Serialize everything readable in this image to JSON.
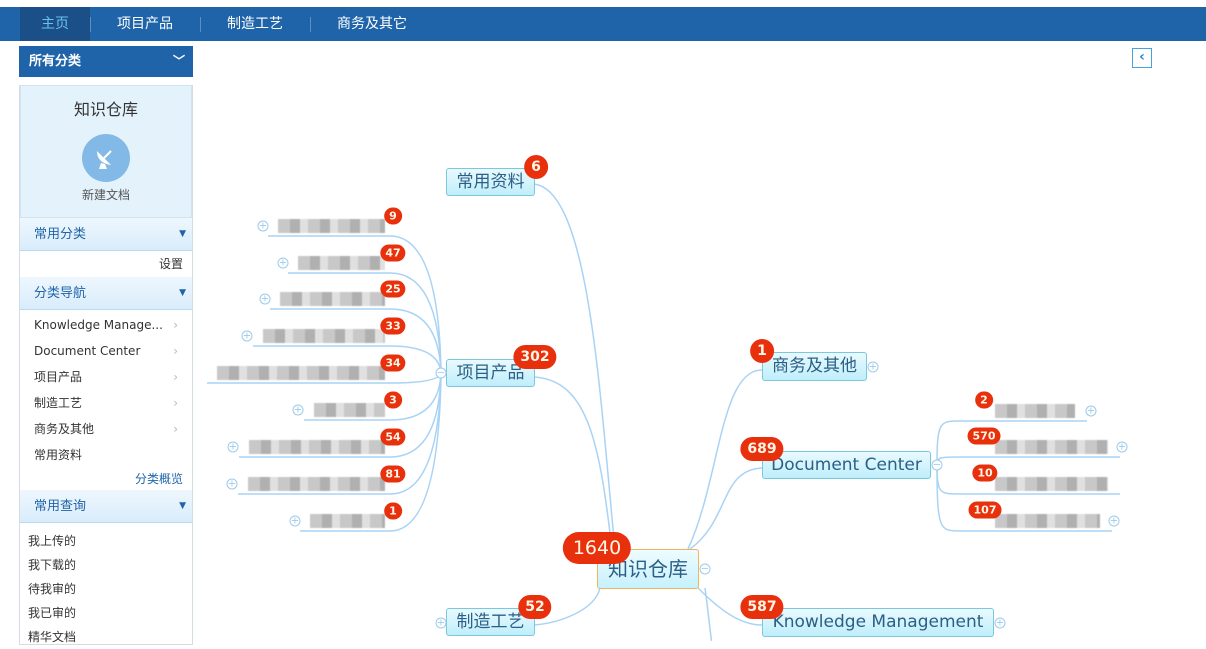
{
  "topnav": [
    "主页",
    "项目产品",
    "制造工艺",
    "商务及其它"
  ],
  "sidebar": {
    "all_categories": "所有分类",
    "repo_title": "知识仓库",
    "new_doc": "新建文档",
    "common_cat": "常用分类",
    "settings": "设置",
    "cat_nav": "分类导航",
    "nav_items": [
      "Knowledge Manage...",
      "Document Center",
      "项目产品",
      "制造工艺",
      "商务及其他",
      "常用资料"
    ],
    "overview": "分类概览",
    "common_query": "常用查询",
    "queries": [
      "我上传的",
      "我下载的",
      "待我审的",
      "我已审的",
      "精华文档"
    ]
  },
  "mindmap": {
    "root": {
      "label": "知识仓库",
      "count": "1640"
    },
    "branches": [
      {
        "label": "常用资料",
        "count": "6"
      },
      {
        "label": "项目产品",
        "count": "302"
      },
      {
        "label": "制造工艺",
        "count": "52"
      },
      {
        "label": "商务及其他",
        "count": "1"
      },
      {
        "label": "Document Center",
        "count": "689"
      },
      {
        "label": "Knowledge Management",
        "count": "587"
      }
    ],
    "project_children_counts": [
      "9",
      "47",
      "25",
      "33",
      "34",
      "3",
      "54",
      "81",
      "1"
    ],
    "doc_center_children_counts": [
      "2",
      "570",
      "10",
      "107"
    ]
  },
  "colors": {
    "nav": "#1f64a8",
    "badge": "#e8300d",
    "link_line": "#a9d3f5"
  }
}
